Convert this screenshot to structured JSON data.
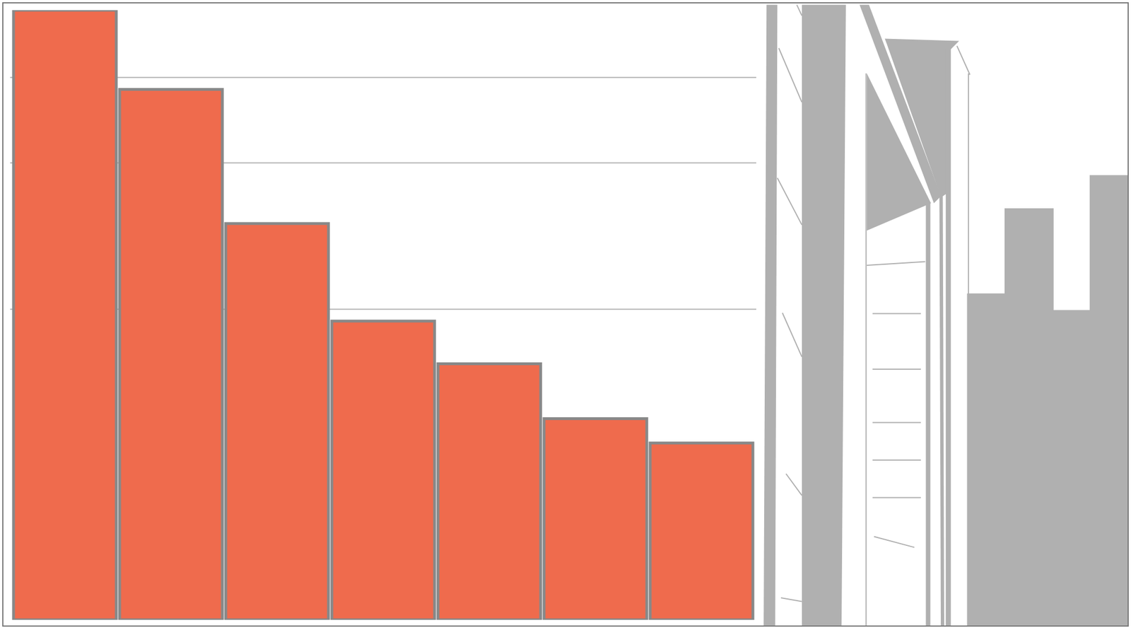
{
  "chart_data": {
    "type": "bar",
    "categories": [
      null,
      null,
      null,
      null,
      null,
      null,
      null
    ],
    "values": [
      100,
      87,
      65,
      49,
      42,
      33,
      29
    ],
    "color": "#ef6b4d",
    "ylim": [
      0,
      100
    ],
    "yticks": [
      51,
      75,
      89
    ],
    "grid": true,
    "tick_labels": false
  }
}
